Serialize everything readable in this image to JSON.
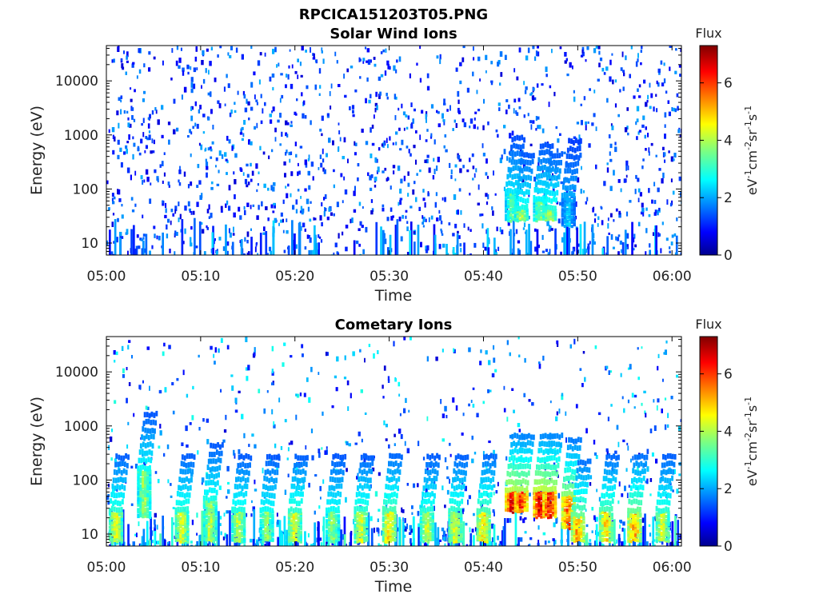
{
  "figure": {
    "title": "RPCICA151203T05.PNG"
  },
  "chart_data": [
    {
      "type": "heatmap",
      "title": "Solar Wind Ions",
      "xlabel": "Time",
      "ylabel": "Energy (eV)",
      "x_range": [
        "05:00",
        "06:01"
      ],
      "x_ticks": [
        "05:00",
        "05:10",
        "05:20",
        "05:30",
        "05:40",
        "05:50",
        "06:00"
      ],
      "y_scale": "log",
      "y_range": [
        6,
        45000
      ],
      "y_ticks": [
        "10",
        "100",
        "1000",
        "10000"
      ],
      "colorbar": {
        "title": "Flux",
        "unit_label": "eV-1cm-2sr-1s-1",
        "range": [
          0,
          7.3
        ],
        "ticks": [
          "0",
          "2",
          "4",
          "6"
        ],
        "colormap": "jet"
      },
      "intensity_bursts": [
        {
          "time": "05:43",
          "energy_min": 25,
          "energy_max": 80,
          "flux": 3.5
        },
        {
          "time": "05:44",
          "energy_min": 25,
          "energy_max": 40,
          "flux": 4.2
        },
        {
          "time": "05:46",
          "energy_min": 25,
          "energy_max": 60,
          "flux": 3.8
        },
        {
          "time": "05:47",
          "energy_min": 25,
          "energy_max": 40,
          "flux": 4.4
        },
        {
          "time": "05:49",
          "energy_min": 20,
          "energy_max": 70,
          "flux": 2.5
        }
      ]
    },
    {
      "type": "heatmap",
      "title": "Cometary Ions",
      "xlabel": "Time",
      "ylabel": "Energy (eV)",
      "x_range": [
        "05:00",
        "06:01"
      ],
      "x_ticks": [
        "05:00",
        "05:10",
        "05:20",
        "05:30",
        "05:40",
        "05:50",
        "06:00"
      ],
      "y_scale": "log",
      "y_range": [
        6,
        45000
      ],
      "y_ticks": [
        "10",
        "100",
        "1000",
        "10000"
      ],
      "colorbar": {
        "title": "Flux",
        "unit_label": "eV-1cm-2sr-1s-1",
        "range": [
          0,
          7.3
        ],
        "ticks": [
          "0",
          "2",
          "4",
          "6"
        ],
        "colormap": "jet"
      },
      "intensity_bursts": [
        {
          "time": "05:01",
          "energy_min": 7,
          "energy_max": 25,
          "flux": 4.5
        },
        {
          "time": "05:04",
          "energy_min": 20,
          "energy_max": 150,
          "flux": 4.0
        },
        {
          "time": "05:08",
          "energy_min": 7,
          "energy_max": 25,
          "flux": 4.5
        },
        {
          "time": "05:11",
          "energy_min": 7,
          "energy_max": 40,
          "flux": 4.2
        },
        {
          "time": "05:14",
          "energy_min": 7,
          "energy_max": 25,
          "flux": 4.3
        },
        {
          "time": "05:17",
          "energy_min": 7,
          "energy_max": 25,
          "flux": 4.0
        },
        {
          "time": "05:20",
          "energy_min": 7,
          "energy_max": 25,
          "flux": 4.6
        },
        {
          "time": "05:24",
          "energy_min": 7,
          "energy_max": 25,
          "flux": 4.0
        },
        {
          "time": "05:27",
          "energy_min": 7,
          "energy_max": 25,
          "flux": 4.5
        },
        {
          "time": "05:30",
          "energy_min": 7,
          "energy_max": 25,
          "flux": 5.0
        },
        {
          "time": "05:34",
          "energy_min": 7,
          "energy_max": 25,
          "flux": 4.4
        },
        {
          "time": "05:37",
          "energy_min": 7,
          "energy_max": 25,
          "flux": 4.6
        },
        {
          "time": "05:40",
          "energy_min": 7,
          "energy_max": 25,
          "flux": 5.0
        },
        {
          "time": "05:43",
          "energy_min": 25,
          "energy_max": 60,
          "flux": 6.8
        },
        {
          "time": "05:44",
          "energy_min": 25,
          "energy_max": 60,
          "flux": 6.5
        },
        {
          "time": "05:46",
          "energy_min": 20,
          "energy_max": 60,
          "flux": 6.9
        },
        {
          "time": "05:47",
          "energy_min": 20,
          "energy_max": 60,
          "flux": 6.7
        },
        {
          "time": "05:49",
          "energy_min": 12,
          "energy_max": 50,
          "flux": 6.0
        },
        {
          "time": "05:50",
          "energy_min": 7,
          "energy_max": 20,
          "flux": 5.5
        },
        {
          "time": "05:53",
          "energy_min": 7,
          "energy_max": 25,
          "flux": 5.0
        },
        {
          "time": "05:56",
          "energy_min": 7,
          "energy_max": 25,
          "flux": 5.5
        },
        {
          "time": "05:59",
          "energy_min": 7,
          "energy_max": 25,
          "flux": 4.5
        }
      ]
    }
  ]
}
